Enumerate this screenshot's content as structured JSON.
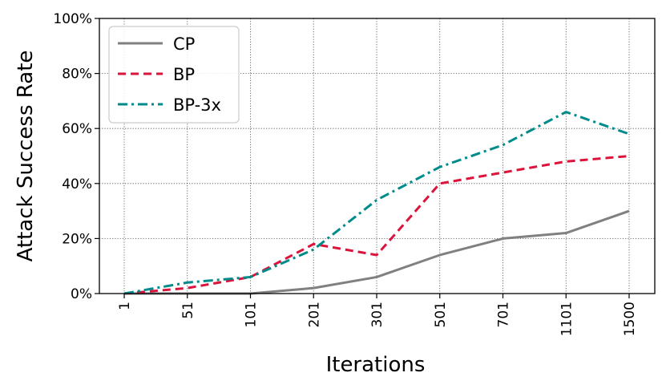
{
  "chart_data": {
    "type": "line",
    "categories": [
      "1",
      "51",
      "101",
      "201",
      "301",
      "501",
      "701",
      "1101",
      "1500"
    ],
    "xlabel": "Iterations",
    "ylabel": "Attack Success Rate",
    "ylim": [
      0,
      100
    ],
    "yticks": [
      "0%",
      "20%",
      "40%",
      "60%",
      "80%",
      "100%"
    ],
    "grid": true,
    "legend_position": "top-left",
    "series": [
      {
        "name": "CP",
        "color": "#808080",
        "style": "solid",
        "values": [
          0,
          0,
          0,
          2,
          6,
          14,
          20,
          22,
          30
        ]
      },
      {
        "name": "BP",
        "color": "#dc143c",
        "style": "dashed",
        "values": [
          0,
          2,
          6,
          18,
          14,
          40,
          44,
          48,
          50
        ]
      },
      {
        "name": "BP-3x",
        "color": "#008b8b",
        "style": "dashdot",
        "values": [
          0,
          4,
          6,
          16,
          34,
          46,
          54,
          66,
          58
        ]
      }
    ]
  }
}
